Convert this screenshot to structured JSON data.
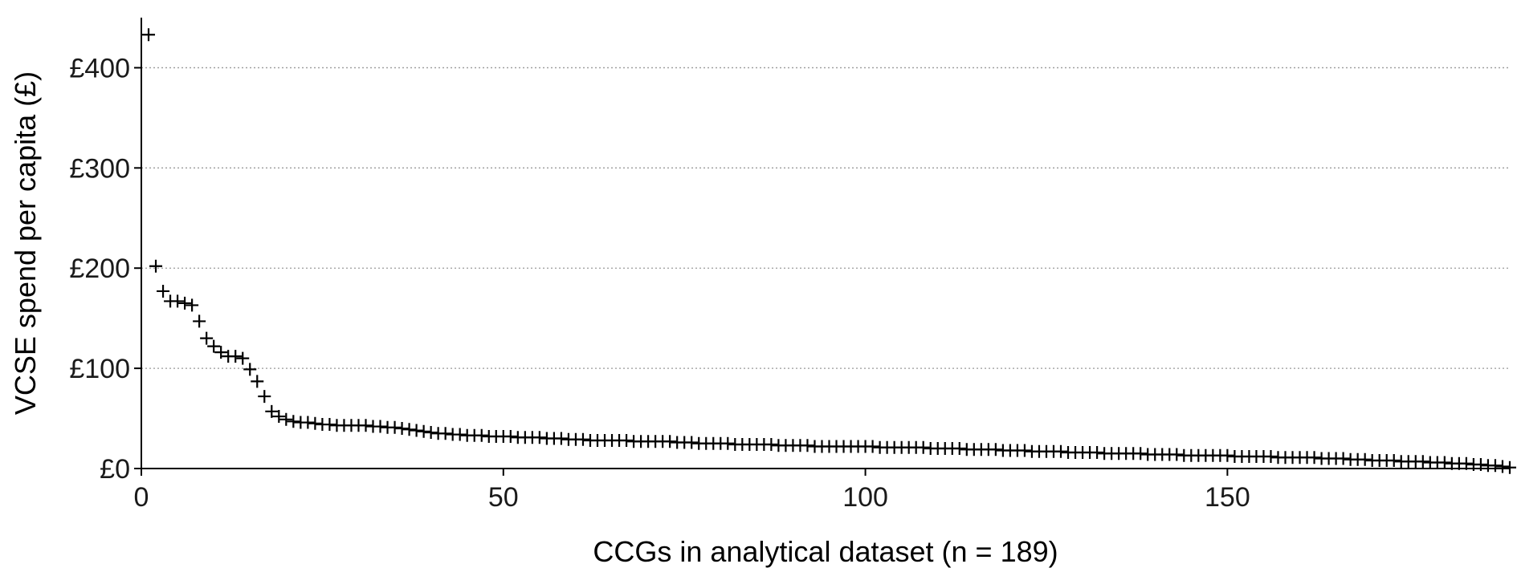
{
  "chart_data": {
    "type": "scatter",
    "title": "",
    "xlabel": "CCGs in analytical dataset (n = 189)",
    "ylabel": "VCSE spend per capita (£)",
    "xlim": [
      0,
      189
    ],
    "ylim": [
      0,
      450
    ],
    "x_ticks": [
      0,
      50,
      100,
      150
    ],
    "y_ticks": [
      0,
      100,
      200,
      300,
      400
    ],
    "x_tick_labels": [
      "0",
      "50",
      "100",
      "150"
    ],
    "y_tick_labels": [
      "£0",
      "£100",
      "£200",
      "£300",
      "£400"
    ],
    "grid": "horizontal-dotted",
    "legend": "none",
    "marker": "plus",
    "point_color": "#000000",
    "x": [
      1,
      2,
      3,
      4,
      5,
      6,
      7,
      8,
      9,
      10,
      11,
      12,
      13,
      14,
      15,
      16,
      17,
      18,
      19,
      20,
      21,
      22,
      23,
      24,
      25,
      26,
      27,
      28,
      29,
      30,
      31,
      32,
      33,
      34,
      35,
      36,
      37,
      38,
      39,
      40,
      41,
      42,
      43,
      44,
      45,
      46,
      47,
      48,
      49,
      50,
      51,
      52,
      53,
      54,
      55,
      56,
      57,
      58,
      59,
      60,
      61,
      62,
      63,
      64,
      65,
      66,
      67,
      68,
      69,
      70,
      71,
      72,
      73,
      74,
      75,
      76,
      77,
      78,
      79,
      80,
      81,
      82,
      83,
      84,
      85,
      86,
      87,
      88,
      89,
      90,
      91,
      92,
      93,
      94,
      95,
      96,
      97,
      98,
      99,
      100,
      101,
      102,
      103,
      104,
      105,
      106,
      107,
      108,
      109,
      110,
      111,
      112,
      113,
      114,
      115,
      116,
      117,
      118,
      119,
      120,
      121,
      122,
      123,
      124,
      125,
      126,
      127,
      128,
      129,
      130,
      131,
      132,
      133,
      134,
      135,
      136,
      137,
      138,
      139,
      140,
      141,
      142,
      143,
      144,
      145,
      146,
      147,
      148,
      149,
      150,
      151,
      152,
      153,
      154,
      155,
      156,
      157,
      158,
      159,
      160,
      161,
      162,
      163,
      164,
      165,
      166,
      167,
      168,
      169,
      170,
      171,
      172,
      173,
      174,
      175,
      176,
      177,
      178,
      179,
      180,
      181,
      182,
      183,
      184,
      185,
      186,
      187,
      188,
      189
    ],
    "y": [
      433,
      202,
      177,
      167,
      167,
      165,
      163,
      147,
      130,
      122,
      116,
      112,
      112,
      110,
      99,
      87,
      72,
      57,
      52,
      49,
      47,
      46,
      46,
      45,
      44,
      44,
      43,
      43,
      43,
      43,
      43,
      42,
      42,
      41,
      41,
      40,
      39,
      38,
      37,
      36,
      35,
      35,
      34,
      34,
      33,
      33,
      33,
      32,
      32,
      32,
      32,
      31,
      31,
      31,
      31,
      30,
      30,
      30,
      29,
      29,
      29,
      28,
      28,
      28,
      28,
      28,
      28,
      27,
      27,
      27,
      27,
      27,
      27,
      26,
      26,
      26,
      25,
      25,
      25,
      25,
      25,
      24,
      24,
      24,
      24,
      24,
      24,
      23,
      23,
      23,
      23,
      23,
      22,
      22,
      22,
      22,
      22,
      22,
      22,
      22,
      22,
      21,
      21,
      21,
      21,
      21,
      21,
      21,
      20,
      20,
      20,
      20,
      20,
      19,
      19,
      19,
      19,
      19,
      18,
      18,
      18,
      18,
      17,
      17,
      17,
      17,
      17,
      16,
      16,
      16,
      16,
      16,
      15,
      15,
      15,
      15,
      15,
      15,
      14,
      14,
      14,
      14,
      14,
      13,
      13,
      13,
      13,
      13,
      13,
      13,
      12,
      12,
      12,
      12,
      12,
      12,
      11,
      11,
      11,
      11,
      11,
      11,
      10,
      10,
      10,
      10,
      9,
      9,
      9,
      8,
      8,
      8,
      8,
      7,
      7,
      7,
      7,
      6,
      6,
      6,
      5,
      5,
      5,
      4,
      4,
      3,
      3,
      2,
      1
    ]
  }
}
